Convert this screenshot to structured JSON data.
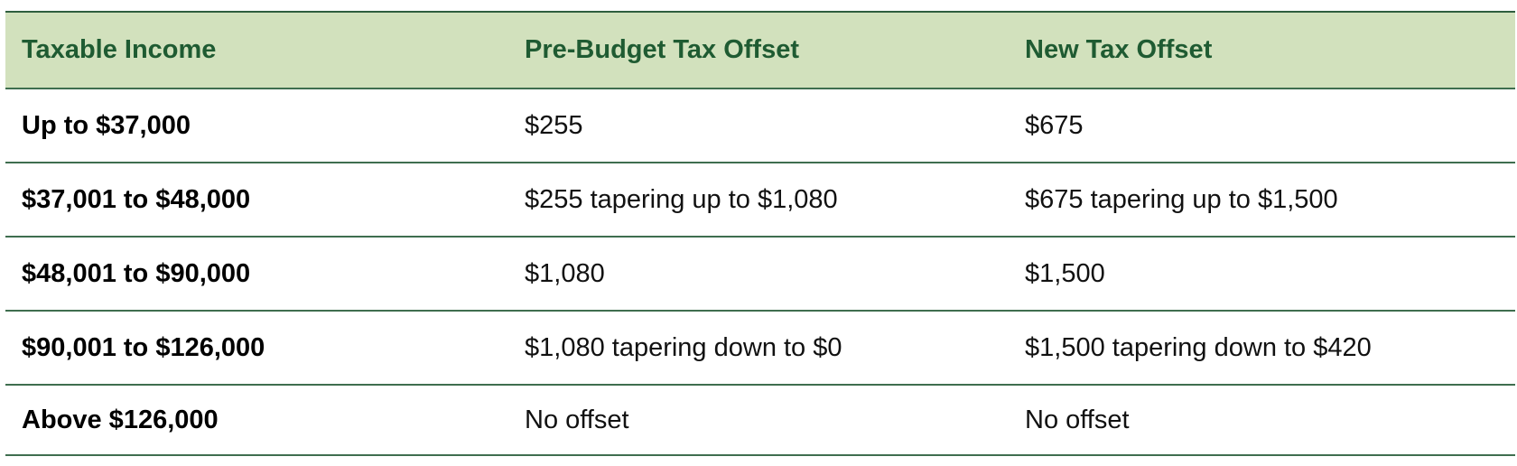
{
  "table": {
    "headers": [
      "Taxable Income",
      "Pre-Budget Tax Offset",
      "New Tax Offset"
    ],
    "rows": [
      [
        "Up to $37,000",
        "$255",
        "$675"
      ],
      [
        "$37,001 to $48,000",
        "$255 tapering up to $1,080",
        "$675 tapering up to $1,500"
      ],
      [
        "$48,001 to $90,000",
        "$1,080",
        "$1,500"
      ],
      [
        "$90,001 to $126,000",
        "$1,080 tapering down to $0",
        "$1,500 tapering down to $420"
      ],
      [
        "Above $126,000",
        "No offset",
        "No offset"
      ]
    ]
  },
  "colors": {
    "header_bg": "#d2e1bd",
    "header_text": "#1f5b32",
    "rule": "#3f6e4f"
  }
}
